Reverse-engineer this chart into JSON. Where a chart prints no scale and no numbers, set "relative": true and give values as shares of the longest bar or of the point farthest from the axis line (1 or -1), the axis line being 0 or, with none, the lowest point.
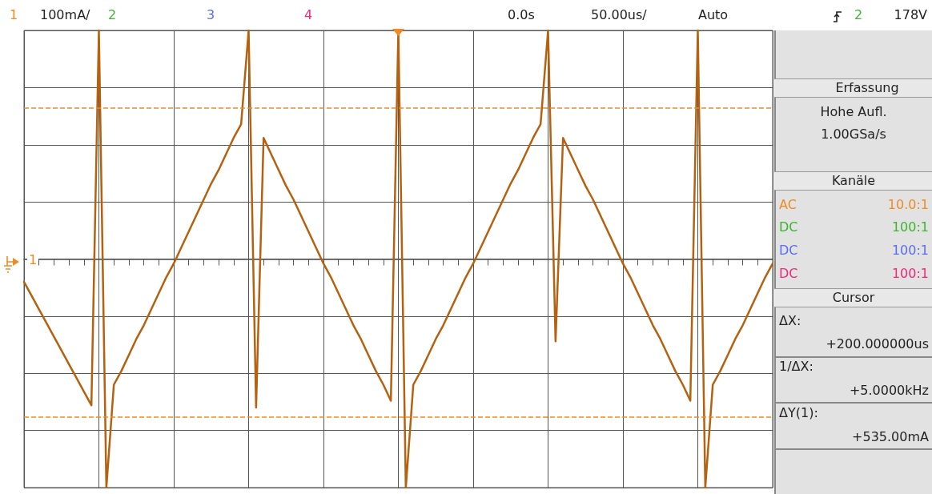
{
  "chart_data": {
    "type": "line",
    "relative": true,
    "grid": true,
    "marker": "none",
    "line_style": "solid",
    "categories": [
      null,
      null,
      null,
      null,
      null,
      null,
      null,
      null,
      null,
      null,
      null,
      null,
      null,
      null,
      null,
      null,
      null,
      null,
      null,
      null,
      null,
      null,
      null,
      null,
      null,
      null,
      null,
      null,
      null,
      null,
      null,
      null,
      null,
      null,
      null,
      null,
      null,
      null,
      null,
      null,
      null,
      null,
      null,
      null,
      null,
      null,
      null,
      null,
      null,
      null,
      null,
      null,
      null,
      null,
      null,
      null,
      null,
      null,
      null,
      null,
      null,
      null,
      null,
      null,
      null,
      null,
      null,
      null,
      null,
      null,
      null,
      null,
      null,
      null,
      null,
      null,
      null,
      null,
      null,
      null,
      null,
      null,
      null,
      null,
      null,
      null,
      null,
      null,
      null,
      null,
      null,
      null,
      null,
      null,
      null,
      null,
      null,
      null,
      null,
      null,
      null
    ],
    "series": [
      {
        "color": "#b5610f",
        "values": [
          -0.1,
          -0.16,
          -0.22,
          -0.28,
          -0.34,
          -0.4,
          -0.46,
          -0.52,
          -0.58,
          -0.64,
          1.0,
          -1.0,
          -0.55,
          -0.49,
          -0.42,
          -0.35,
          -0.29,
          -0.22,
          -0.15,
          -0.08,
          -0.02,
          0.05,
          0.12,
          0.19,
          0.26,
          0.33,
          0.39,
          0.46,
          0.53,
          0.59,
          1.0,
          -0.65,
          0.53,
          0.46,
          0.39,
          0.32,
          0.26,
          0.19,
          0.12,
          0.05,
          -0.02,
          -0.08,
          -0.15,
          -0.22,
          -0.29,
          -0.35,
          -0.42,
          -0.49,
          -0.55,
          -0.62,
          1.0,
          -1.0,
          -0.55,
          -0.49,
          -0.42,
          -0.35,
          -0.29,
          -0.22,
          -0.15,
          -0.08,
          -0.02,
          0.05,
          0.12,
          0.19,
          0.26,
          0.33,
          0.39,
          0.46,
          0.53,
          0.59,
          1.0,
          -0.36,
          0.53,
          0.46,
          0.39,
          0.32,
          0.26,
          0.19,
          0.12,
          0.05,
          -0.02,
          -0.08,
          -0.15,
          -0.22,
          -0.29,
          -0.35,
          -0.42,
          -0.49,
          -0.55,
          -0.62,
          1.0,
          -1.0,
          -0.55,
          -0.49,
          -0.42,
          -0.35,
          -0.29,
          -0.22,
          -0.15,
          -0.08,
          -0.02
        ]
      }
    ],
    "ref_lines": [
      {
        "axis": "y",
        "value": 0.66,
        "color": "#f08a24",
        "line_style": "dashed"
      },
      {
        "axis": "y",
        "value": -0.69,
        "color": "#f08a24",
        "line_style": "dashed"
      }
    ],
    "annotations": [
      "1",
      "100mA/",
      "2",
      "3",
      "4",
      "0.0s",
      "50.00us/",
      "Auto",
      "2",
      "178V",
      "Erfassung",
      "Hohe Aufl.",
      "1.00GSa/s",
      "Kanäle",
      "AC",
      "10.0:1",
      "DC",
      "100:1",
      "DC",
      "100:1",
      "DC",
      "100:1",
      "Cursor",
      "ΔX:",
      "+200.000000us",
      "1/ΔX:",
      "+5.0000kHz",
      "ΔY(1):",
      "+535.00mA",
      "1"
    ]
  }
}
